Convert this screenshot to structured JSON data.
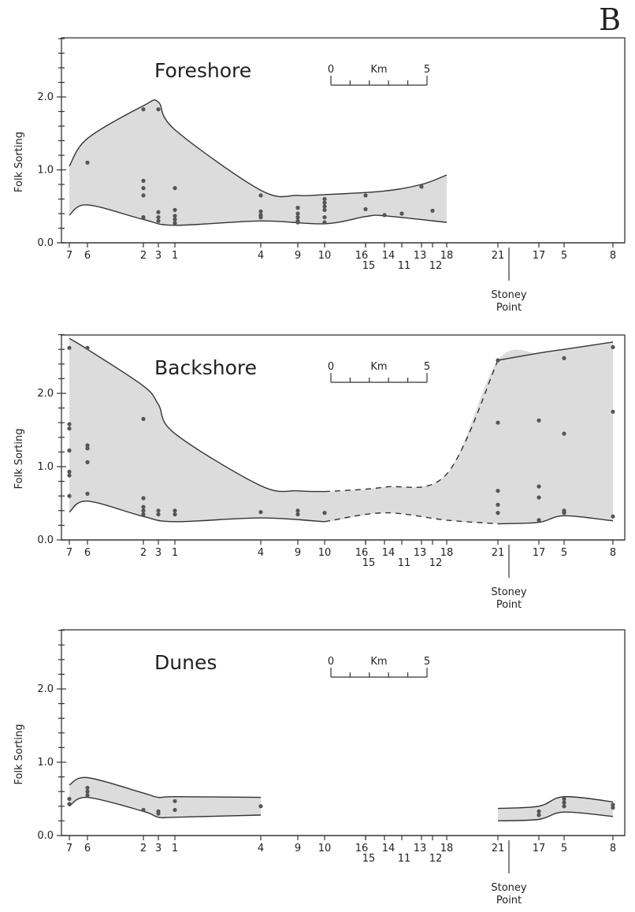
{
  "figure_letter": "B",
  "colors": {
    "band": "#dcdcdc",
    "line": "#333333",
    "point": "#555555"
  },
  "chart_data": [
    {
      "type": "area",
      "title": "Foreshore",
      "ylabel": "Folk Sorting",
      "ylim": [
        0.0,
        2.8
      ],
      "y_ticks": [
        "0.0",
        "1.0",
        "2.0"
      ],
      "x_station_labels": [
        "7",
        "6",
        "2",
        "3",
        "1",
        "4",
        "9",
        "10",
        "16",
        "15",
        "14",
        "11",
        "13",
        "12",
        "18",
        "21",
        "17",
        "5",
        "8"
      ],
      "landmark": {
        "label_line1": "Stoney",
        "label_line2": "Point"
      },
      "scale_bar": {
        "start": "0",
        "unit": "Km",
        "end": "5"
      },
      "upper_bound": [
        {
          "station": "7",
          "value": 1.05
        },
        {
          "station": "6",
          "value": 1.43
        },
        {
          "station": "2",
          "value": 1.88
        },
        {
          "station": "3",
          "value": 1.93
        },
        {
          "station": "1",
          "value": 1.55
        },
        {
          "station": "4",
          "value": 0.72
        },
        {
          "station": "9",
          "value": 0.65
        },
        {
          "station": "10",
          "value": 0.66
        },
        {
          "station": "14",
          "value": 0.71
        },
        {
          "station": "13",
          "value": 0.8
        },
        {
          "station": "18",
          "value": 0.93
        }
      ],
      "lower_bound": [
        {
          "station": "7",
          "value": 0.38
        },
        {
          "station": "6",
          "value": 0.52
        },
        {
          "station": "2",
          "value": 0.32
        },
        {
          "station": "1",
          "value": 0.24
        },
        {
          "station": "4",
          "value": 0.3
        },
        {
          "station": "10",
          "value": 0.26
        },
        {
          "station": "16",
          "value": 0.36
        },
        {
          "station": "14",
          "value": 0.37
        },
        {
          "station": "18",
          "value": 0.28
        }
      ],
      "samples": [
        {
          "station": "6",
          "values": [
            1.1
          ]
        },
        {
          "station": "2",
          "values": [
            1.83,
            0.85,
            0.75,
            0.65,
            0.35
          ]
        },
        {
          "station": "3",
          "values": [
            1.83,
            0.42,
            0.35,
            0.3
          ]
        },
        {
          "station": "1",
          "values": [
            0.75,
            0.45,
            0.37,
            0.32,
            0.27
          ]
        },
        {
          "station": "4",
          "values": [
            0.65,
            0.43,
            0.38,
            0.35
          ]
        },
        {
          "station": "9",
          "values": [
            0.48,
            0.4,
            0.35,
            0.3,
            0.28
          ]
        },
        {
          "station": "10",
          "values": [
            0.6,
            0.55,
            0.5,
            0.45,
            0.35,
            0.28
          ]
        },
        {
          "station": "16",
          "values": [
            0.65
          ]
        },
        {
          "station": "15",
          "values": [
            0.46
          ]
        },
        {
          "station": "14",
          "values": [
            0.38
          ]
        },
        {
          "station": "11",
          "values": [
            0.4
          ]
        },
        {
          "station": "13",
          "values": [
            0.77
          ]
        },
        {
          "station": "12",
          "values": [
            0.44
          ]
        }
      ]
    },
    {
      "type": "area",
      "title": "Backshore",
      "ylabel": "Folk Sorting",
      "ylim": [
        0.0,
        2.8
      ],
      "y_ticks": [
        "0.0",
        "1.0",
        "2.0"
      ],
      "x_station_labels": [
        "7",
        "6",
        "2",
        "3",
        "1",
        "4",
        "9",
        "10",
        "16",
        "15",
        "14",
        "11",
        "13",
        "12",
        "18",
        "21",
        "17",
        "5",
        "8"
      ],
      "landmark": {
        "label_line1": "Stoney",
        "label_line2": "Point"
      },
      "scale_bar": {
        "start": "0",
        "unit": "Km",
        "end": "5"
      },
      "upper_bound": [
        {
          "station": "7",
          "value": 2.75
        },
        {
          "station": "6",
          "value": 2.6
        },
        {
          "station": "2",
          "value": 2.1
        },
        {
          "station": "3",
          "value": 1.85
        },
        {
          "station": "1",
          "value": 1.45
        },
        {
          "station": "4",
          "value": 0.74
        },
        {
          "station": "9",
          "value": 0.67
        },
        {
          "station": "10",
          "value": 0.66
        },
        {
          "station": "14",
          "value": 0.72
        },
        {
          "station": "18",
          "value": 0.9
        },
        {
          "station": "21",
          "value": 2.45
        },
        {
          "station": "17",
          "value": 2.55
        },
        {
          "station": "5",
          "value": 2.6
        },
        {
          "station": "8",
          "value": 2.7
        }
      ],
      "upper_dashed_segment": [
        "10",
        "21"
      ],
      "lower_bound": [
        {
          "station": "7",
          "value": 0.38
        },
        {
          "station": "6",
          "value": 0.53
        },
        {
          "station": "2",
          "value": 0.32
        },
        {
          "station": "1",
          "value": 0.25
        },
        {
          "station": "4",
          "value": 0.3
        },
        {
          "station": "10",
          "value": 0.25
        },
        {
          "station": "14",
          "value": 0.37
        },
        {
          "station": "18",
          "value": 0.27
        },
        {
          "station": "21",
          "value": 0.22
        },
        {
          "station": "17",
          "value": 0.24
        },
        {
          "station": "5",
          "value": 0.33
        },
        {
          "station": "8",
          "value": 0.26
        }
      ],
      "lower_dashed_segment": [
        "10",
        "21"
      ],
      "samples": [
        {
          "station": "7",
          "values": [
            2.62,
            1.58,
            1.52,
            1.22,
            0.93,
            0.88,
            0.6
          ]
        },
        {
          "station": "6",
          "values": [
            2.62,
            1.29,
            1.25,
            1.06,
            0.63
          ]
        },
        {
          "station": "2",
          "values": [
            1.65,
            0.57,
            0.45,
            0.4,
            0.35
          ]
        },
        {
          "station": "3",
          "values": [
            0.4,
            0.35
          ]
        },
        {
          "station": "1",
          "values": [
            0.4,
            0.35
          ]
        },
        {
          "station": "4",
          "values": [
            0.38
          ]
        },
        {
          "station": "9",
          "values": [
            0.4,
            0.35
          ]
        },
        {
          "station": "10",
          "values": [
            0.37
          ]
        },
        {
          "station": "21",
          "values": [
            2.45,
            1.6,
            0.67,
            0.48,
            0.37
          ]
        },
        {
          "station": "17",
          "values": [
            1.63,
            0.73,
            0.58,
            0.27
          ]
        },
        {
          "station": "5",
          "values": [
            2.48,
            1.45,
            0.4,
            0.37
          ]
        },
        {
          "station": "8",
          "values": [
            2.63,
            1.75,
            0.32
          ]
        }
      ]
    },
    {
      "type": "area",
      "title": "Dunes",
      "ylabel": "Folk Sorting",
      "ylim": [
        0.0,
        2.8
      ],
      "y_ticks": [
        "0.0",
        "1.0",
        "2.0"
      ],
      "x_station_labels": [
        "7",
        "6",
        "2",
        "3",
        "1",
        "4",
        "9",
        "10",
        "16",
        "15",
        "14",
        "11",
        "13",
        "12",
        "18",
        "21",
        "17",
        "5",
        "8"
      ],
      "landmark": {
        "label_line1": "Stoney",
        "label_line2": "Point"
      },
      "scale_bar": {
        "start": "0",
        "unit": "Km",
        "end": "5"
      },
      "segments": [
        {
          "upper_bound": [
            {
              "station": "7",
              "value": 0.69
            },
            {
              "station": "6",
              "value": 0.79
            },
            {
              "station": "2",
              "value": 0.58
            },
            {
              "station": "3",
              "value": 0.52
            },
            {
              "station": "1",
              "value": 0.53
            },
            {
              "station": "4",
              "value": 0.52
            }
          ],
          "lower_bound": [
            {
              "station": "7",
              "value": 0.4
            },
            {
              "station": "6",
              "value": 0.52
            },
            {
              "station": "2",
              "value": 0.33
            },
            {
              "station": "3",
              "value": 0.25
            },
            {
              "station": "1",
              "value": 0.25
            },
            {
              "station": "4",
              "value": 0.28
            }
          ]
        },
        {
          "upper_bound": [
            {
              "station": "21",
              "value": 0.37
            },
            {
              "station": "17",
              "value": 0.4
            },
            {
              "station": "5",
              "value": 0.53
            },
            {
              "station": "8",
              "value": 0.46
            }
          ],
          "lower_bound": [
            {
              "station": "21",
              "value": 0.2
            },
            {
              "station": "17",
              "value": 0.22
            },
            {
              "station": "5",
              "value": 0.32
            },
            {
              "station": "8",
              "value": 0.26
            }
          ]
        }
      ],
      "samples": [
        {
          "station": "7",
          "values": [
            0.5,
            0.43
          ]
        },
        {
          "station": "6",
          "values": [
            0.65,
            0.6,
            0.55
          ]
        },
        {
          "station": "2",
          "values": [
            0.35
          ]
        },
        {
          "station": "3",
          "values": [
            0.33,
            0.3
          ]
        },
        {
          "station": "1",
          "values": [
            0.47,
            0.35
          ]
        },
        {
          "station": "4",
          "values": [
            0.4
          ]
        },
        {
          "station": "17",
          "values": [
            0.33,
            0.28
          ]
        },
        {
          "station": "5",
          "values": [
            0.5,
            0.45,
            0.4
          ]
        },
        {
          "station": "8",
          "values": [
            0.42,
            0.38
          ]
        }
      ]
    }
  ]
}
